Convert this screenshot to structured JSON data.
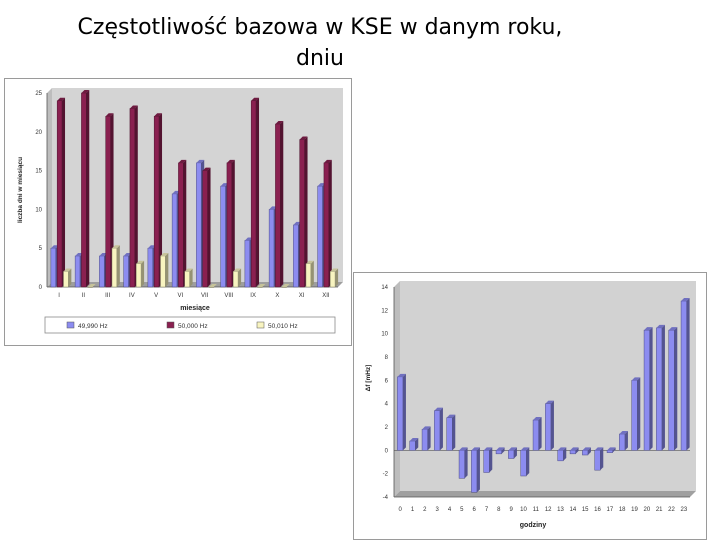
{
  "slide": {
    "title_line1": "Częstotliwość bazowa w KSE w danym roku,",
    "title_line2": "dniu"
  },
  "chart_data": [
    {
      "type": "bar",
      "title": "",
      "xlabel": "miesiące",
      "ylabel": "liczba dni w miesiącu",
      "categories": [
        "I",
        "II",
        "III",
        "IV",
        "V",
        "VI",
        "VII",
        "VIII",
        "IX",
        "X",
        "XI",
        "XII"
      ],
      "ylim": [
        0,
        25
      ],
      "yticks": [
        0,
        5,
        10,
        15,
        20,
        25
      ],
      "grid": false,
      "legend_position": "bottom",
      "series": [
        {
          "name": "49,990 Hz",
          "color": "#8c8cf0",
          "values": [
            5,
            4,
            4,
            4,
            5,
            12,
            16,
            13,
            6,
            10,
            8,
            13
          ]
        },
        {
          "name": "50,000 Hz",
          "color": "#8a2050",
          "values": [
            24,
            25,
            22,
            23,
            22,
            16,
            15,
            16,
            24,
            21,
            19,
            16
          ]
        },
        {
          "name": "50,010 Hz",
          "color": "#f8f4c0",
          "values": [
            2,
            0,
            5,
            3,
            4,
            2,
            0,
            2,
            0,
            0,
            3,
            2
          ]
        }
      ]
    },
    {
      "type": "bar",
      "title": "",
      "xlabel": "godziny",
      "ylabel": "Δf [mHz]",
      "categories": [
        "0",
        "1",
        "2",
        "3",
        "4",
        "5",
        "6",
        "7",
        "8",
        "9",
        "10",
        "11",
        "12",
        "13",
        "14",
        "15",
        "16",
        "17",
        "18",
        "19",
        "20",
        "21",
        "22",
        "23"
      ],
      "ylim": [
        -4,
        14
      ],
      "yticks": [
        -4,
        -2,
        0,
        2,
        4,
        6,
        8,
        10,
        12,
        14
      ],
      "grid": false,
      "legend_position": "none",
      "series": [
        {
          "name": "",
          "color": "#8c8cf0",
          "values": [
            6.3,
            0.8,
            1.8,
            3.4,
            2.8,
            -2.4,
            -3.6,
            -1.9,
            -0.3,
            -0.7,
            -2.2,
            2.6,
            4.0,
            -0.9,
            -0.3,
            -0.4,
            -1.7,
            -0.2,
            1.4,
            6.0,
            10.3,
            10.5,
            10.3,
            12.8
          ]
        }
      ]
    }
  ]
}
